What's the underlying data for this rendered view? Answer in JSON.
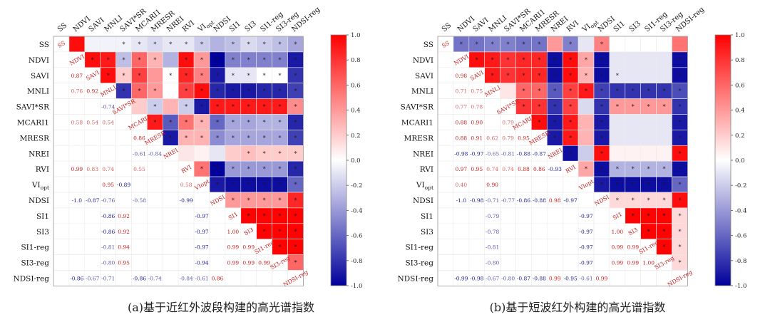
{
  "chart_data": [
    {
      "type": "heatmap",
      "variables": [
        "SS",
        "NDVI",
        "SAVI",
        "MNLI",
        "SAVI*SR",
        "MCARI1",
        "MRESR",
        "NREI",
        "RVI",
        "VIopt",
        "NDSI",
        "SI1",
        "SI3",
        "SI1-reg",
        "SI3-reg",
        "NDSI-reg"
      ],
      "lower_labels": [
        [],
        [
          ""
        ],
        [
          "",
          "0.87"
        ],
        [
          "",
          "0.76",
          "0.92"
        ],
        [
          "",
          "",
          "",
          "-0.74"
        ],
        [
          "",
          "0.58",
          "0.54",
          "0.54",
          ""
        ],
        [
          "",
          "",
          "",
          "",
          "",
          "0.86"
        ],
        [
          "",
          "",
          "",
          "",
          "",
          "-0.61",
          "-0.84"
        ],
        [
          "",
          "0.99",
          "0.83",
          "0.74",
          "",
          "0.55",
          "",
          ""
        ],
        [
          "",
          "",
          "",
          "0.95",
          "-0.89",
          "",
          "",
          "",
          "0.58"
        ],
        [
          "",
          "-1.0",
          "-0.87",
          "-0.76",
          "",
          "-0.58",
          "",
          "",
          "-0.99",
          ""
        ],
        [
          "",
          "",
          "",
          "-0.86",
          "0.92",
          "",
          "",
          "",
          "",
          "-0.97",
          ""
        ],
        [
          "",
          "",
          "",
          "-0.86",
          "0.92",
          "",
          "",
          "",
          "",
          "-0.97",
          "",
          "1.00"
        ],
        [
          "",
          "",
          "",
          "-0.81",
          "0.94",
          "",
          "",
          "",
          "",
          "-0.97",
          "",
          "0.99",
          "0.99"
        ],
        [
          "",
          "",
          "",
          "-0.80",
          "0.95",
          "",
          "",
          "",
          "",
          "-0.94",
          "",
          "0.99",
          "0.99",
          "0.99"
        ],
        [
          "",
          "-0.86",
          "-0.67",
          "-0.71",
          "",
          "-0.86",
          "-0.74",
          "",
          "-0.84",
          "-0.61",
          "0.86",
          "",
          "",
          "",
          "",
          ""
        ]
      ],
      "upper_values": [
        [
          0.95,
          -0.05,
          -0.05,
          -0.05,
          -0.1,
          -0.15,
          -0.1,
          -0.1,
          -0.2,
          -0.3,
          -0.25,
          -0.15,
          -0.2,
          -0.25,
          -0.35
        ],
        [
          0.95,
          0.9,
          -0.25,
          0.6,
          0.3,
          -0.3,
          0.95,
          0.4,
          -1.0,
          -0.5,
          -0.5,
          -0.5,
          -0.5,
          -0.9
        ],
        [
          0.95,
          0.2,
          0.75,
          0.4,
          0.0,
          0.85,
          0.5,
          -0.9,
          -0.1,
          -0.1,
          0.0,
          0.0,
          -0.8
        ],
        [
          -0.8,
          0.6,
          0.4,
          0.0,
          0.75,
          0.95,
          -0.85,
          -0.9,
          -0.9,
          -0.85,
          -0.85,
          -0.75
        ],
        [
          0.2,
          -0.2,
          0.3,
          -0.2,
          -0.9,
          0.9,
          0.9,
          0.9,
          0.9,
          0.9,
          0.45
        ],
        [
          0.9,
          -0.65,
          0.55,
          0.3,
          -0.6,
          -0.35,
          -0.35,
          -0.3,
          -0.3,
          -0.85
        ],
        [
          -0.9,
          0.3,
          0.3,
          -0.45,
          -0.35,
          -0.35,
          -0.35,
          -0.35,
          -0.75
        ],
        [
          0.1,
          0.05,
          -0.1,
          0.2,
          0.25,
          0.2,
          0.2,
          0.2
        ],
        [
          0.55,
          -0.99,
          -0.4,
          -0.4,
          -0.4,
          -0.4,
          -0.85
        ],
        [
          -0.9,
          -0.95,
          -0.95,
          -0.95,
          -0.95,
          -0.6
        ],
        [
          0.4,
          0.4,
          0.4,
          0.4,
          0.85
        ],
        [
          0.99,
          0.99,
          0.99,
          0.99
        ],
        [
          0.99,
          0.99,
          0.99
        ],
        [
          0.99,
          0.99
        ],
        [
          0.6
        ]
      ],
      "upper_stars": [
        [
          "",
          "",
          "",
          "*",
          "*",
          "*",
          "*",
          "*",
          "*",
          "",
          "*",
          "*",
          "*",
          "*",
          "*"
        ],
        [
          "*",
          "*",
          "*",
          "*",
          "*",
          "",
          "*",
          "*",
          "*",
          "*",
          "*",
          "*",
          "*",
          "*"
        ],
        [
          "*",
          "*",
          "*",
          "",
          "*",
          "*",
          "*",
          "*",
          "*",
          "*",
          "*",
          "*",
          "*"
        ],
        [
          "*",
          "*",
          "*",
          "",
          "*",
          "*",
          "*",
          "*",
          "*",
          "*",
          "*",
          "*"
        ],
        [
          "",
          "*",
          "",
          "*",
          "*",
          "*",
          "*",
          "*",
          "*",
          "*",
          "*"
        ],
        [
          "*",
          "*",
          "*",
          "*",
          "*",
          "*",
          "*",
          "*",
          "*",
          "*"
        ],
        [
          "*",
          "*",
          "*",
          "*",
          "*",
          "*",
          "*",
          "*",
          "*"
        ],
        [
          "",
          "",
          "",
          "",
          "*",
          "*",
          "*",
          "*"
        ],
        [
          "*",
          "*",
          "*",
          "*",
          "*",
          "*",
          "*"
        ],
        [
          "*",
          "*",
          "*",
          "*",
          "*",
          "*"
        ],
        [
          "*",
          "*",
          "*",
          "*",
          "*"
        ],
        [
          "*",
          "*",
          "*",
          "*"
        ],
        [
          "*",
          "*",
          "*"
        ],
        [
          "*",
          "*"
        ],
        [
          "*"
        ]
      ],
      "colorbar_ticks": [
        "1.0",
        "0.8",
        "0.6",
        "0.4",
        "0.2",
        "0.0",
        "-0.2",
        "-0.4",
        "-0.6",
        "-0.8",
        "-1.0"
      ],
      "colorbar_range": [
        -1.0,
        1.0
      ]
    },
    {
      "type": "heatmap",
      "variables": [
        "SS",
        "NDVI",
        "SAVI",
        "MNLI",
        "SAVI*SR",
        "MCARI1",
        "MRESR",
        "NREI",
        "RVI",
        "VIopt",
        "NDSI",
        "SI1",
        "SI3",
        "SI1-reg",
        "SI3-reg",
        "NDSI-reg"
      ],
      "lower_labels": [
        [],
        [
          ""
        ],
        [
          "",
          "0.98"
        ],
        [
          "",
          "0.71",
          "0.75"
        ],
        [
          "",
          "0.77",
          "0.78",
          ""
        ],
        [
          "",
          "0.88",
          "0.90",
          "",
          "0.79"
        ],
        [
          "",
          "0.88",
          "0.91",
          "0.62",
          "0.79",
          "0.95"
        ],
        [
          "",
          "-0.98",
          "-0.97",
          "-0.65",
          "-0.81",
          "-0.88",
          "-0.87"
        ],
        [
          "",
          "0.97",
          "0.95",
          "0.74",
          "0.74",
          "0.88",
          "0.86",
          "-0.93"
        ],
        [
          "",
          "0.40",
          "",
          "0.90",
          "",
          "",
          "",
          "",
          ""
        ],
        [
          "",
          "-1.0",
          "-0.98",
          "-0.71",
          "-0.77",
          "-0.86",
          "-0.88",
          "0.98",
          "-0.97",
          ""
        ],
        [
          "",
          "",
          "",
          "-0.79",
          "",
          "",
          "",
          "",
          "",
          "-0.97",
          ""
        ],
        [
          "",
          "",
          "",
          "-0.78",
          "",
          "",
          "",
          "",
          "",
          "-0.97",
          "",
          "1.00"
        ],
        [
          "",
          "",
          "",
          "-0.81",
          "",
          "",
          "",
          "",
          "",
          "-0.97",
          "",
          "0.99",
          "0.99"
        ],
        [
          "",
          "",
          "",
          "-0.80",
          "",
          "",
          "",
          "",
          "",
          "-0.97",
          "",
          "0.99",
          "0.99",
          "1.00"
        ],
        [
          "",
          "-0.99",
          "-0.98",
          "-0.67",
          "-0.80",
          "-0.87",
          "-0.88",
          "0.99",
          "-0.95",
          "-0.61",
          "0.99",
          "",
          "",
          "",
          "",
          ""
        ]
      ],
      "upper_values": [
        [
          -0.55,
          -0.55,
          -0.5,
          -0.5,
          -0.55,
          -0.55,
          0.4,
          -0.5,
          -0.1,
          0.5,
          0.0,
          0.0,
          0.0,
          0.0,
          0.55
        ],
        [
          0.95,
          0.9,
          0.8,
          0.85,
          0.85,
          -0.95,
          0.95,
          0.35,
          -0.95,
          -0.1,
          -0.1,
          -0.1,
          -0.1,
          -0.95
        ],
        [
          0.9,
          0.8,
          0.85,
          0.85,
          -0.95,
          0.95,
          0.3,
          -0.95,
          -0.1,
          -0.1,
          -0.1,
          -0.1,
          -0.95
        ],
        [
          0.1,
          0.6,
          0.6,
          -0.65,
          0.75,
          0.9,
          -0.75,
          -0.8,
          -0.8,
          -0.8,
          -0.8,
          -0.7
        ],
        [
          0.8,
          0.8,
          -0.8,
          0.75,
          -0.15,
          -0.8,
          0.4,
          0.4,
          0.4,
          0.4,
          -0.8
        ],
        [
          0.95,
          -0.9,
          0.9,
          0.3,
          -0.9,
          -0.1,
          -0.1,
          -0.1,
          -0.1,
          -0.9
        ],
        [
          -0.9,
          0.9,
          0.3,
          -0.9,
          -0.1,
          -0.1,
          -0.1,
          -0.1,
          -0.9
        ],
        [
          -0.95,
          -0.2,
          0.95,
          0.05,
          0.05,
          0.05,
          0.05,
          0.95
        ],
        [
          0.35,
          -0.95,
          -0.3,
          -0.3,
          -0.3,
          -0.3,
          -0.95
        ],
        [
          -0.9,
          -0.95,
          -0.95,
          -0.95,
          -0.95,
          -0.6
        ],
        [
          0.15,
          0.15,
          0.15,
          0.15,
          0.95
        ],
        [
          0.99,
          0.99,
          0.99,
          0.15
        ],
        [
          0.99,
          0.99,
          0.15
        ],
        [
          0.99,
          0.15
        ],
        [
          0.15
        ]
      ],
      "upper_stars": [
        [
          "*",
          "*",
          "*",
          "*",
          "*",
          "*",
          "",
          "*",
          "",
          "*",
          "",
          "",
          "",
          "",
          ""
        ],
        [
          "*",
          "*",
          "*",
          "*",
          "*",
          "*",
          "*",
          "*",
          "*",
          "",
          "",
          "",
          "",
          "*"
        ],
        [
          "*",
          "*",
          "*",
          "*",
          "*",
          "*",
          "*",
          "*",
          "*",
          "",
          "",
          "",
          "*"
        ],
        [
          "",
          "*",
          "*",
          "*",
          "*",
          "*",
          "*",
          "*",
          "*",
          "*",
          "*",
          "*"
        ],
        [
          "*",
          "*",
          "*",
          "*",
          "",
          "*",
          "*",
          "*",
          "*",
          "*",
          "*"
        ],
        [
          "*",
          "*",
          "*",
          "",
          "*",
          "",
          "",
          "",
          "",
          "*"
        ],
        [
          "*",
          "*",
          "",
          "*",
          "",
          "",
          "",
          "",
          "*"
        ],
        [
          "*",
          "",
          "*",
          "",
          "",
          "",
          "",
          "*"
        ],
        [
          "*",
          "*",
          "*",
          "*",
          "*",
          "*",
          "*"
        ],
        [
          "*",
          "*",
          "*",
          "*",
          "*",
          "*"
        ],
        [
          "*",
          "*",
          "*",
          "*",
          "*"
        ],
        [
          "*",
          "*",
          "*",
          "*"
        ],
        [
          "*",
          "*",
          "*"
        ],
        [
          "*",
          "*"
        ],
        [
          "*"
        ]
      ],
      "colorbar_ticks": [
        "1.0",
        "0.8",
        "0.6",
        "0.4",
        "0.2",
        "0.0",
        "-0.2",
        "-0.4",
        "-0.6",
        "-0.8",
        "-1.0"
      ],
      "colorbar_range": [
        -1.0,
        1.0
      ]
    }
  ],
  "captions": {
    "a": "(a)基于近红外波段构建的高光谱指数",
    "b": "(b)基于短波红外构建的高光谱指数"
  }
}
